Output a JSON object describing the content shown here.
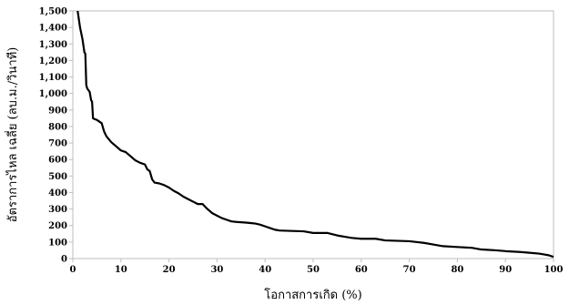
{
  "chart_data": {
    "type": "line",
    "title": "",
    "xlabel": "โอกาสการเกิด (%)",
    "ylabel": "อัตราการไหล เฉลี่ย (ลบ.ม./วินาที)",
    "xlim": [
      0,
      100
    ],
    "ylim": [
      0,
      1500
    ],
    "x_ticks": [
      0,
      10,
      20,
      30,
      40,
      50,
      60,
      70,
      80,
      90,
      100
    ],
    "y_ticks": [
      0,
      100,
      200,
      300,
      400,
      500,
      600,
      700,
      800,
      900,
      1000,
      1100,
      1200,
      1300,
      1400,
      1500
    ],
    "x_tick_labels": [
      "0",
      "10",
      "20",
      "30",
      "40",
      "50",
      "60",
      "70",
      "80",
      "90",
      "100"
    ],
    "y_tick_labels": [
      "0",
      "100",
      "200",
      "300",
      "400",
      "500",
      "600",
      "700",
      "800",
      "900",
      "1,000",
      "1,100",
      "1,200",
      "1,300",
      "1,400",
      "1,500"
    ],
    "grid": false,
    "legend": "none",
    "line_color": "#000000",
    "series": [
      {
        "x": [
          1.0,
          1.5,
          2.0,
          2.4,
          2.6,
          2.8,
          3.0,
          3.5,
          3.8,
          4.0,
          4.2,
          4.5,
          5.0,
          6.0,
          6.5,
          7.0,
          8.0,
          9.0,
          10.0,
          11.0,
          12.0,
          13.0,
          14.0,
          15.0,
          15.5,
          16.0,
          16.5,
          17.0,
          18.0,
          19.0,
          20.0,
          21.0,
          22.0,
          23.0,
          24.0,
          25.0,
          26.0,
          27.0,
          28.0,
          29.0,
          30.0,
          31.0,
          32.0,
          33.0,
          34.0,
          35.0,
          36.0,
          37.0,
          38.0,
          39.0,
          40.0,
          41.0,
          42.0,
          43.0,
          45.0,
          48.0,
          50.0,
          53.0,
          55.0,
          57.0,
          58.0,
          60.0,
          63.0,
          65.0,
          70.0,
          73.0,
          75.0,
          77.0,
          80.0,
          83.0,
          85.0,
          88.0,
          90.0,
          93.0,
          95.0,
          97.0,
          98.0,
          99.0,
          100.0
        ],
        "y": [
          1500,
          1400,
          1330,
          1250,
          1240,
          1050,
          1030,
          1010,
          960,
          950,
          850,
          845,
          840,
          820,
          770,
          740,
          705,
          680,
          655,
          645,
          620,
          595,
          580,
          570,
          540,
          530,
          480,
          460,
          455,
          445,
          430,
          410,
          395,
          375,
          360,
          345,
          330,
          330,
          300,
          275,
          260,
          245,
          235,
          225,
          222,
          220,
          218,
          215,
          212,
          205,
          195,
          185,
          175,
          170,
          168,
          165,
          155,
          155,
          140,
          130,
          125,
          120,
          120,
          110,
          105,
          95,
          85,
          75,
          70,
          65,
          55,
          50,
          45,
          40,
          35,
          30,
          25,
          20,
          10
        ]
      }
    ]
  }
}
